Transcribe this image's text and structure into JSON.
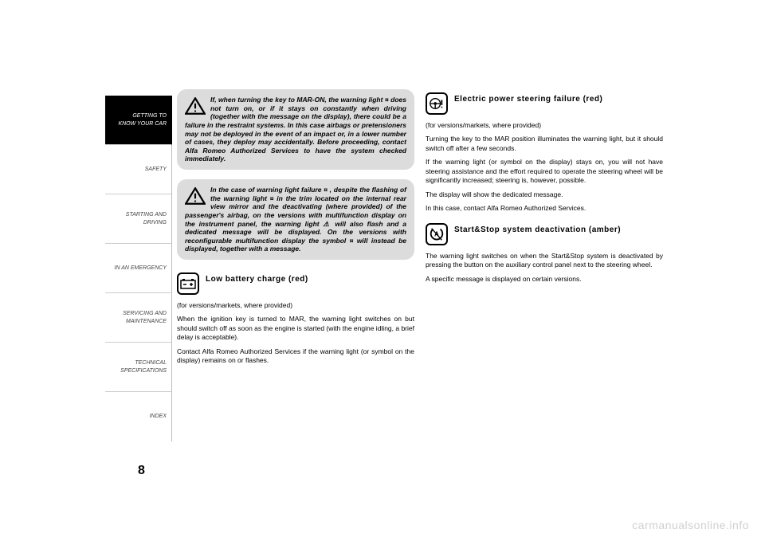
{
  "sidebar": {
    "tabs": [
      {
        "label": "GETTING TO\nKNOW YOUR CAR",
        "active": true
      },
      {
        "label": "SAFETY",
        "active": false
      },
      {
        "label": "STARTING AND\nDRIVING",
        "active": false
      },
      {
        "label": "IN AN EMERGENCY",
        "active": false
      },
      {
        "label": "SERVICING AND\nMAINTENANCE",
        "active": false
      },
      {
        "label": "TECHNICAL\nSPECIFICATIONS",
        "active": false
      },
      {
        "label": "INDEX",
        "active": false
      }
    ]
  },
  "page_number": "8",
  "watermark": "carmanualsonline.info",
  "left_column": {
    "warning1": "If, when turning the key to MAR-ON, the warning light ¤ does not turn on, or if it stays on constantly when driving (together with the message on the display), there could be a failure in the restraint systems. In this case airbags or pretensioners may not be deployed in the event of an impact or, in a lower number of cases, they deploy may accidentally. Before proceeding, contact Alfa Romeo Authorized Services to have the system checked immediately.",
    "warning2": "In the case of warning light failure ¤ , despite the flashing of the warning light ¤ in the trim located on the internal rear view mirror and the deactivating (where provided) of the passenger's airbag, on the versions with multifunction display on the instrument panel, the warning light ⚠ will also flash and a dedicated message will be displayed. On the versions with reconfigurable multifunction display the symbol ¤ will instead be displayed, together with a message.",
    "section1": {
      "title": "Low battery charge (red)",
      "p1": "(for versions/markets, where provided)",
      "p2": "When the ignition key is turned to MAR, the warning light switches on but should switch off as soon as the engine is started (with the engine idling, a brief delay is acceptable).",
      "p3": "Contact Alfa Romeo Authorized Services if the warning light (or symbol on the display) remains on or flashes."
    }
  },
  "right_column": {
    "section1": {
      "title": "Electric power steering failure (red)",
      "p1": "(for versions/markets, where provided)",
      "p2": "Turning the key to the MAR position illuminates the warning light, but it should switch off after a few seconds.",
      "p3": "If the warning light (or symbol on the display) stays on, you will not have steering assistance and the effort required to operate the steering wheel will be significantly increased; steering is, however, possible.",
      "p4": "The display will show the dedicated message.",
      "p5": "In this case, contact Alfa Romeo Authorized Services."
    },
    "section2": {
      "title": "Start&Stop system deactivation (amber)",
      "p1": "The warning light switches on when the Start&Stop system is deactivated by pressing the button on the auxiliary control panel next to the steering wheel.",
      "p2": "A specific message is displayed on certain versions."
    }
  },
  "colors": {
    "warning_bg": "#dcdcdc",
    "active_tab_bg": "#000000",
    "text": "#000000",
    "watermark": "#d0d0d0"
  }
}
